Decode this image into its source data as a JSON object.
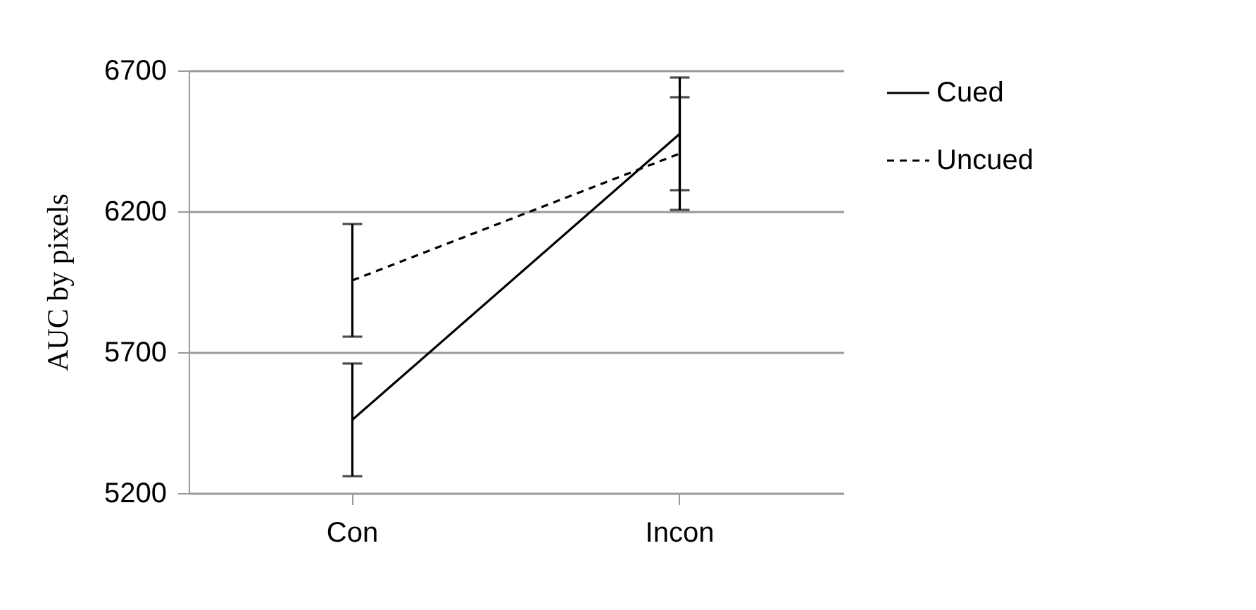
{
  "chart_data": {
    "type": "line",
    "ylabel": "AUC by pixels",
    "categories": [
      "Con",
      "Incon"
    ],
    "series": [
      {
        "name": "Cued",
        "color": "#000000",
        "line_style": "solid",
        "values": [
          5460,
          6475
        ],
        "errors": [
          200,
          200
        ]
      },
      {
        "name": "Uncued",
        "color": "#000000",
        "line_style": "dashed",
        "values": [
          5955,
          6405
        ],
        "errors": [
          200,
          200
        ]
      }
    ],
    "ylim": [
      5200,
      6700
    ],
    "yticks": [
      5200,
      5700,
      6200,
      6700
    ],
    "grid": "y",
    "legend": "right",
    "marker": "none"
  }
}
